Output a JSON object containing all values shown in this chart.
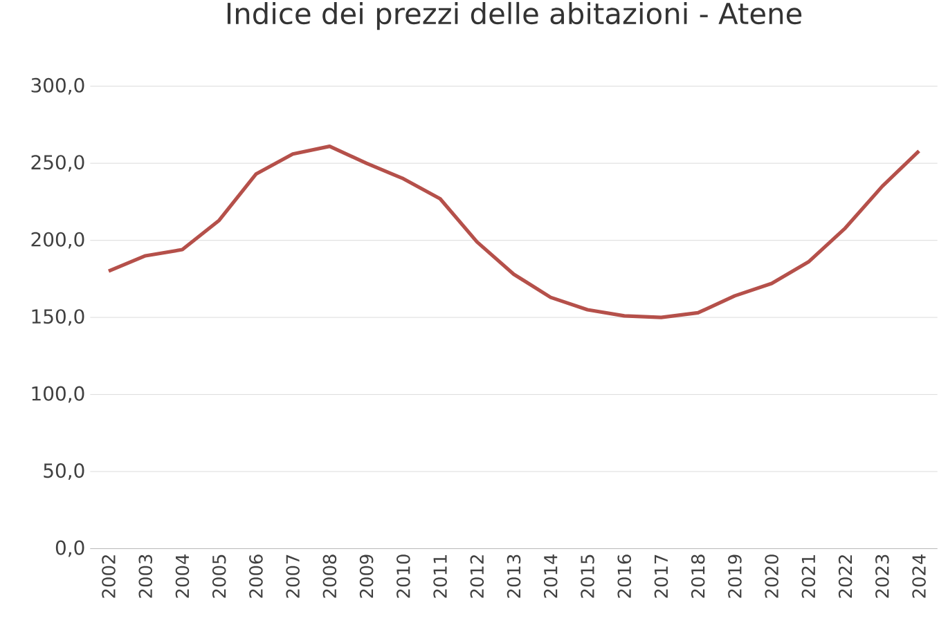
{
  "chart_data": {
    "type": "line",
    "title": "Indice dei prezzi delle abitazioni - Atene",
    "categories": [
      "2002",
      "2003",
      "2004",
      "2005",
      "2006",
      "2007",
      "2008",
      "2009",
      "2010",
      "2011",
      "2012",
      "2013",
      "2014",
      "2015",
      "2016",
      "2017",
      "2018",
      "2019",
      "2020",
      "2021",
      "2022",
      "2023",
      "2024"
    ],
    "values": [
      180,
      190,
      194,
      213,
      243,
      256,
      261,
      250,
      240,
      227,
      199,
      178,
      163,
      155,
      151,
      150,
      153,
      164,
      172,
      186,
      208,
      235,
      258
    ],
    "color": "#b5504a",
    "ylim": [
      0,
      300
    ],
    "yticks": [
      {
        "value": 0,
        "label": "0,0"
      },
      {
        "value": 50,
        "label": "50,0"
      },
      {
        "value": 100,
        "label": "100,0"
      },
      {
        "value": 150,
        "label": "150,0"
      },
      {
        "value": 200,
        "label": "200,0"
      },
      {
        "value": 250,
        "label": "250,0"
      },
      {
        "value": 300,
        "label": "300,0"
      }
    ],
    "grid": "y",
    "line_style": "solid",
    "marker": "none"
  }
}
